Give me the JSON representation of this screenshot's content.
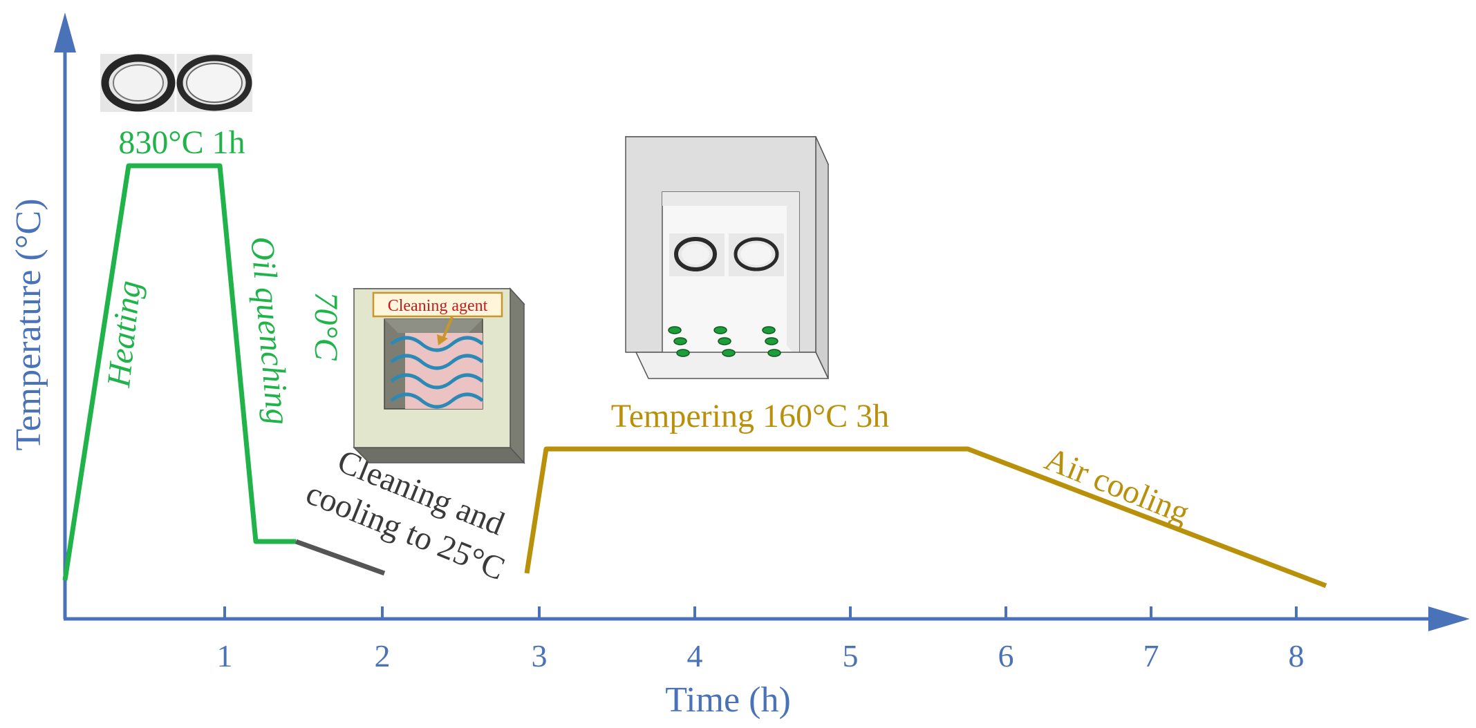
{
  "axes": {
    "x_label": "Time (h)",
    "y_label": "Temperature (°C)",
    "x_ticks": [
      "1",
      "2",
      "3",
      "4",
      "5",
      "6",
      "7",
      "8"
    ]
  },
  "stages": {
    "heating": "Heating",
    "austenitizing": "830°C 1h",
    "oil_quenching": "Oil quenching",
    "oil_temp": "70°C",
    "cleaning": [
      "Cleaning and",
      "cooling to 25°C"
    ],
    "cleaning_agent": "Cleaning agent",
    "tempering": "Tempering 160°C 3h",
    "air_cooling": "Air cooling"
  },
  "colors": {
    "axis": "#4a72b8",
    "quench": "#1fb34a",
    "cleaning": "#555555",
    "tempering": "#b8900a"
  }
}
